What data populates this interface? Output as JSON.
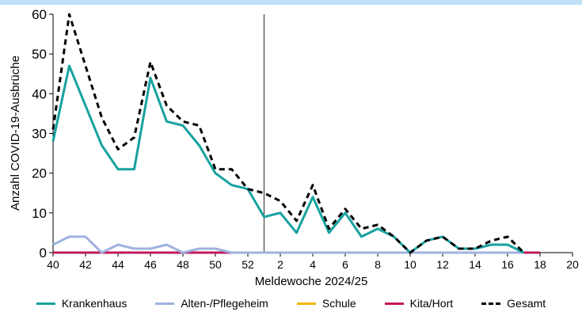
{
  "chart_data": {
    "type": "line",
    "ylabel": "Anzahl COVID-19-Ausbrüche",
    "xlabel": "Meldewoche 2024/25",
    "ylim": [
      0,
      60
    ],
    "yticks": [
      0,
      10,
      20,
      30,
      40,
      50,
      60
    ],
    "weeks": [
      40,
      41,
      42,
      43,
      44,
      45,
      46,
      47,
      48,
      49,
      50,
      51,
      52,
      1,
      2,
      3,
      4,
      5,
      6,
      7,
      8,
      9,
      10,
      11,
      12,
      13,
      14,
      15,
      16,
      17,
      18,
      19,
      20
    ],
    "xtick_labels": [
      "40",
      "42",
      "44",
      "46",
      "48",
      "50",
      "52",
      "2",
      "4",
      "6",
      "8",
      "10",
      "12",
      "14",
      "16",
      "18",
      "20"
    ],
    "xtick_indices": [
      0,
      2,
      4,
      6,
      8,
      10,
      12,
      14,
      16,
      18,
      20,
      22,
      24,
      26,
      28,
      30,
      32
    ],
    "year_divider_index": 13,
    "series": [
      {
        "name": "Krankenhaus",
        "color": "#17a2a0",
        "dashed": false,
        "values": [
          28,
          47,
          37,
          27,
          21,
          21,
          44,
          33,
          32,
          27,
          20,
          17,
          16,
          9,
          10,
          5,
          14,
          5,
          10,
          4,
          6,
          4,
          0,
          3,
          4,
          1,
          1,
          2,
          2,
          0,
          null,
          null,
          null
        ]
      },
      {
        "name": "Alten-/Pflegeheim",
        "color": "#9fb3e0",
        "dashed": false,
        "values": [
          2,
          4,
          4,
          0,
          2,
          1,
          1,
          2,
          0,
          1,
          1,
          0,
          0,
          0,
          0,
          0,
          0,
          0,
          0,
          0,
          0,
          0,
          0,
          0,
          0,
          0,
          0,
          0,
          0,
          0,
          null,
          null,
          null
        ]
      },
      {
        "name": "Schule",
        "color": "#f2b705",
        "dashed": false,
        "values": [
          0,
          0,
          0,
          0,
          0,
          0,
          0,
          0,
          0,
          0,
          0,
          0,
          0,
          0,
          0,
          0,
          0,
          0,
          0,
          0,
          0,
          0,
          0,
          0,
          0,
          0,
          0,
          0,
          0,
          0,
          0,
          null,
          null
        ]
      },
      {
        "name": "Kita/Hort",
        "color": "#c2185b",
        "dashed": false,
        "values": [
          0,
          0,
          0,
          0,
          0,
          0,
          0,
          0,
          0,
          0,
          0,
          0,
          0,
          0,
          0,
          0,
          0,
          0,
          0,
          0,
          0,
          0,
          0,
          0,
          0,
          0,
          0,
          0,
          0,
          0,
          0,
          null,
          null
        ]
      },
      {
        "name": "Gesamt",
        "color": "#000000",
        "dashed": true,
        "values": [
          31,
          60,
          47,
          34,
          26,
          29,
          48,
          37,
          33,
          32,
          21,
          21,
          16,
          15,
          13,
          8,
          17,
          6,
          11,
          6,
          7,
          4,
          0,
          3,
          4,
          1,
          1,
          3,
          4,
          0,
          null,
          null,
          null
        ]
      }
    ],
    "legend_position": "bottom"
  }
}
